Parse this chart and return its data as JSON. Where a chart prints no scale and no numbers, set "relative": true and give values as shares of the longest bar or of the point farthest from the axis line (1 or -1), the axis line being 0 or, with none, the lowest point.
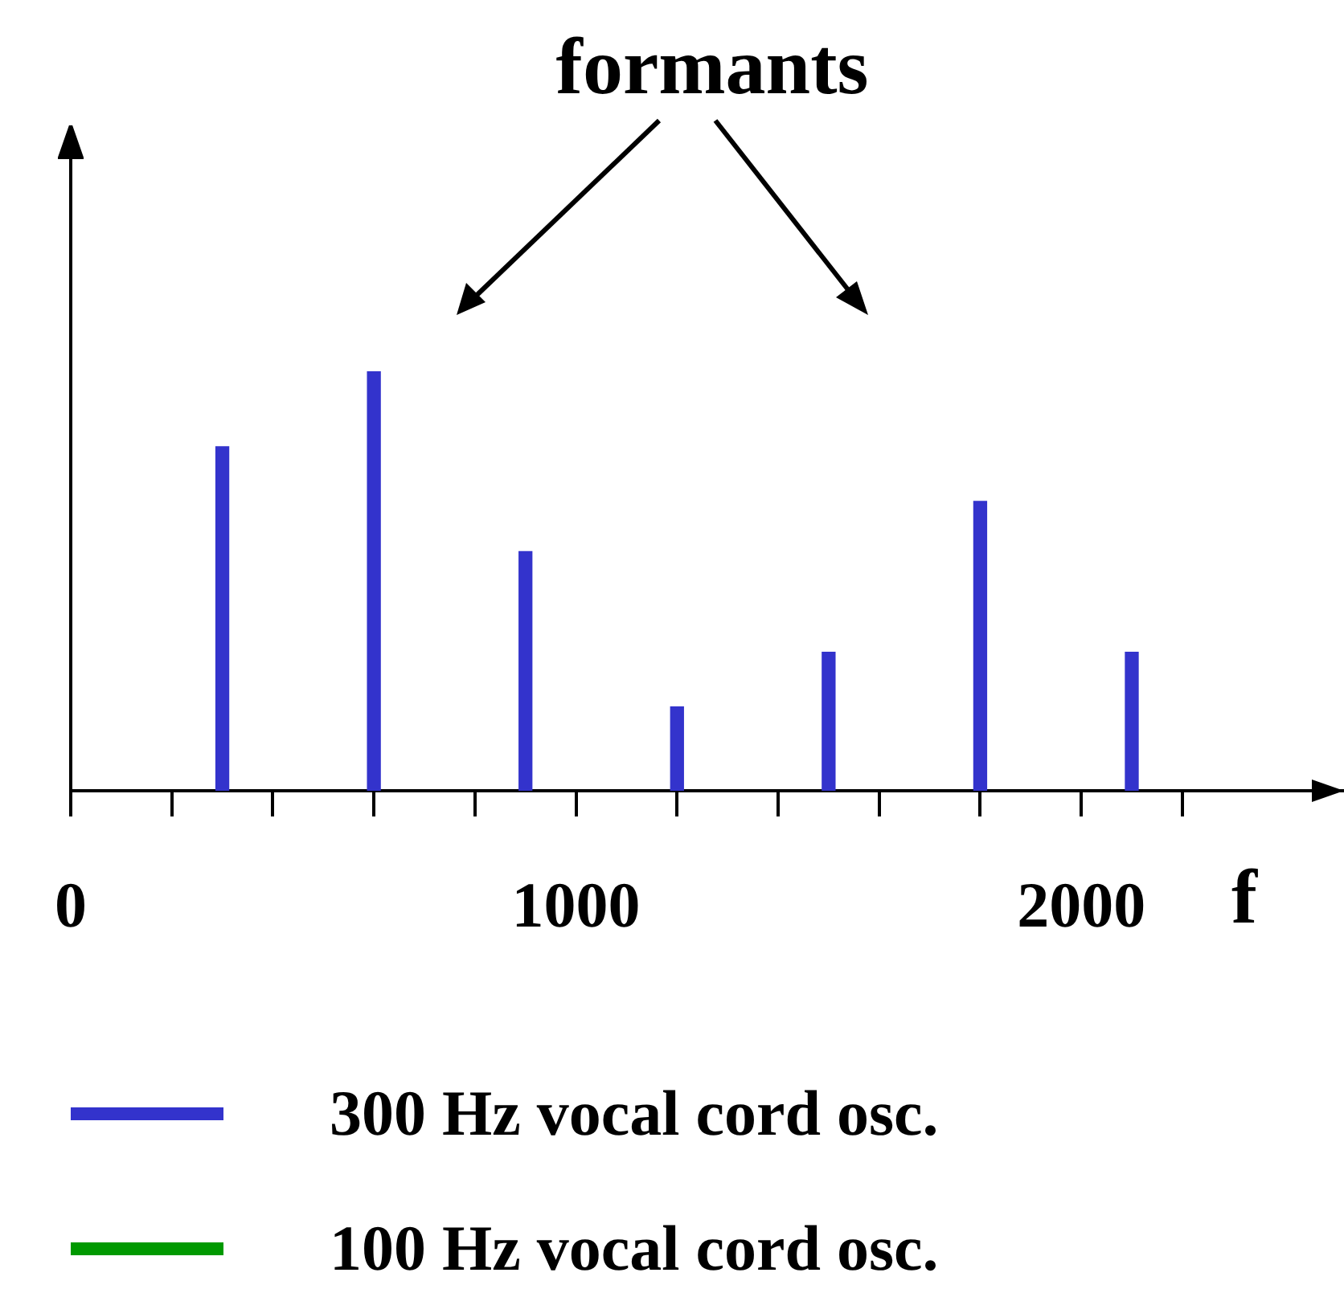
{
  "chart_data": {
    "type": "bar",
    "relative": true,
    "xlabel": "f",
    "annotations": [
      "formants"
    ],
    "x": [
      300,
      600,
      900,
      1200,
      1500,
      1800,
      2100
    ],
    "xlim": [
      0,
      2520
    ],
    "xticks": [
      0,
      {
        "value": 200,
        "label": null
      },
      {
        "value": 400,
        "label": null
      },
      {
        "value": 600,
        "label": null
      },
      {
        "value": 800,
        "label": null
      },
      1000,
      {
        "value": 1200,
        "label": null
      },
      {
        "value": 1400,
        "label": null
      },
      {
        "value": 1600,
        "label": null
      },
      {
        "value": 1800,
        "label": null
      },
      2000,
      {
        "value": 2200,
        "label": null
      }
    ],
    "series": [
      {
        "name": "300 Hz vocal cord osc.",
        "color": "#3333cc",
        "values": [
          0.82,
          1,
          0.57,
          0.2,
          0.33,
          0.69,
          0.33
        ]
      },
      {
        "name": "100 Hz vocal cord osc.",
        "color": "#009900",
        "values": [
          null,
          null,
          null,
          null,
          null,
          null,
          null
        ]
      }
    ],
    "legend": "bottom",
    "grid": false
  }
}
